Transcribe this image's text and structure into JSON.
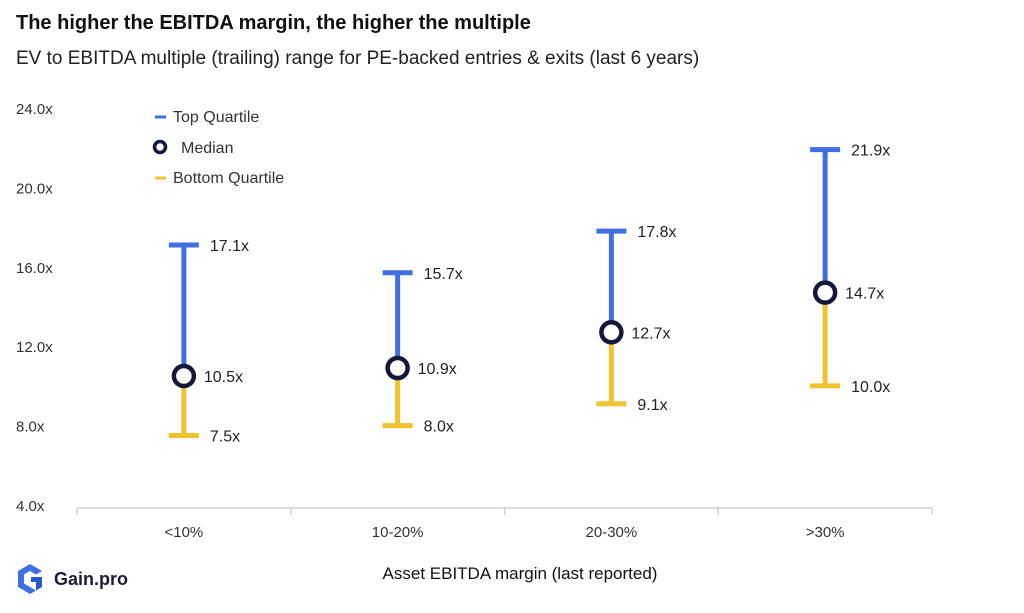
{
  "header": {
    "title": "The higher the EBITDA margin, the higher the multiple",
    "subtitle": "EV to EBITDA multiple (trailing) range for PE-backed entries & exits (last 6 years)"
  },
  "brand": {
    "name": "Gain.pro",
    "icon": "gain-pro-logo-icon"
  },
  "colors": {
    "top": "#3f6fe0",
    "bottom": "#f0c230",
    "median_stroke": "#15183a",
    "axis": "#c9c9c9",
    "text": "#222222"
  },
  "chart_data": {
    "type": "range",
    "xlabel": "Asset EBITDA margin (last reported)",
    "ylabel": "",
    "ylim": [
      4,
      24
    ],
    "yticks": [
      4,
      8,
      12,
      16,
      20,
      24
    ],
    "ytick_labels": [
      "4.0x",
      "8.0x",
      "12.0x",
      "16.0x",
      "20.0x",
      "24.0x"
    ],
    "categories": [
      "<10%",
      "10-20%",
      "20-30%",
      ">30%"
    ],
    "series": [
      {
        "name": "Top Quartile",
        "values": [
          17.1,
          15.7,
          17.8,
          21.9
        ],
        "labels": [
          "17.1x",
          "15.7x",
          "17.8x",
          "21.9x"
        ]
      },
      {
        "name": "Median",
        "values": [
          10.5,
          10.9,
          12.7,
          14.7
        ],
        "labels": [
          "10.5x",
          "10.9x",
          "12.7x",
          "14.7x"
        ]
      },
      {
        "name": "Bottom Quartile",
        "values": [
          7.5,
          8.0,
          9.1,
          10.0
        ],
        "labels": [
          "7.5x",
          "8.0x",
          "9.1x",
          "10.0x"
        ]
      }
    ],
    "legend": {
      "placement": "top-left",
      "items": [
        "Top Quartile",
        "Median",
        "Bottom Quartile"
      ]
    },
    "grid": false
  }
}
